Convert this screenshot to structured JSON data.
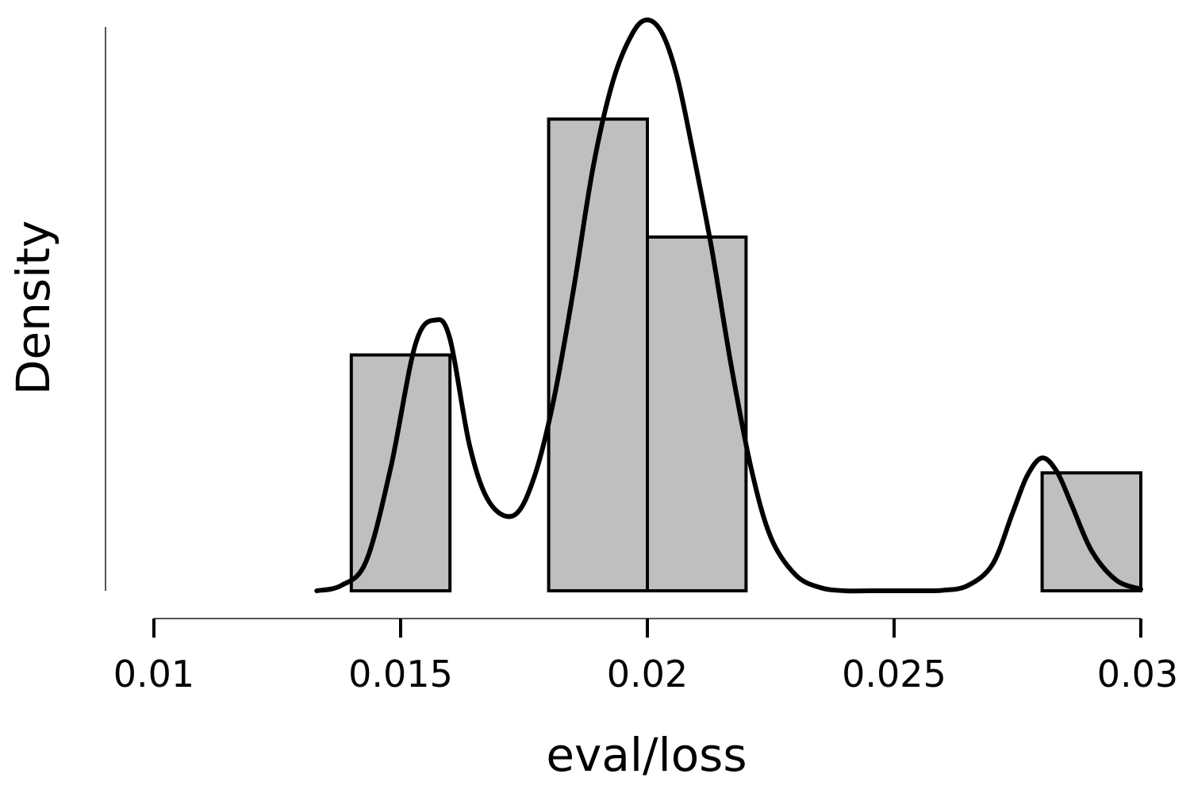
{
  "chart_data": {
    "type": "histogram",
    "xlabel": "eval/loss",
    "ylabel": "Density",
    "xlim": [
      0.01,
      0.03
    ],
    "y_tick_labels_shown": false,
    "x_ticks": [
      0.01,
      0.015,
      0.02,
      0.025,
      0.03
    ],
    "x_tick_labels": [
      "0.01",
      "0.015",
      "0.02",
      "0.025",
      "0.03"
    ],
    "bins": [
      {
        "x0": 0.014,
        "x1": 0.016,
        "count": 2
      },
      {
        "x0": 0.016,
        "x1": 0.018,
        "count": 0
      },
      {
        "x0": 0.018,
        "x1": 0.02,
        "count": 4
      },
      {
        "x0": 0.02,
        "x1": 0.022,
        "count": 3
      },
      {
        "x0": 0.022,
        "x1": 0.024,
        "count": 0
      },
      {
        "x0": 0.024,
        "x1": 0.026,
        "count": 0
      },
      {
        "x0": 0.026,
        "x1": 0.028,
        "count": 0
      },
      {
        "x0": 0.028,
        "x1": 0.03,
        "count": 1
      }
    ],
    "density_curve": {
      "x": [
        0.0133,
        0.0138,
        0.0143,
        0.0148,
        0.0153,
        0.0157,
        0.016,
        0.0164,
        0.0168,
        0.0173,
        0.0177,
        0.0181,
        0.0185,
        0.0189,
        0.0193,
        0.0197,
        0.02,
        0.0203,
        0.0206,
        0.0209,
        0.0213,
        0.0217,
        0.0221,
        0.0225,
        0.023,
        0.0235,
        0.024,
        0.0245,
        0.025,
        0.0255,
        0.026,
        0.0265,
        0.027,
        0.0274,
        0.0277,
        0.028,
        0.0283,
        0.0286,
        0.029,
        0.0295,
        0.03
      ],
      "y": [
        0.0,
        0.01,
        0.055,
        0.23,
        0.46,
        0.505,
        0.47,
        0.27,
        0.165,
        0.141,
        0.21,
        0.355,
        0.56,
        0.79,
        0.95,
        1.04,
        1.065,
        1.04,
        0.96,
        0.83,
        0.64,
        0.42,
        0.23,
        0.1,
        0.03,
        0.006,
        0.0,
        0.0,
        0.0,
        0.0,
        0.001,
        0.01,
        0.05,
        0.145,
        0.215,
        0.248,
        0.222,
        0.16,
        0.075,
        0.02,
        0.003
      ]
    }
  }
}
